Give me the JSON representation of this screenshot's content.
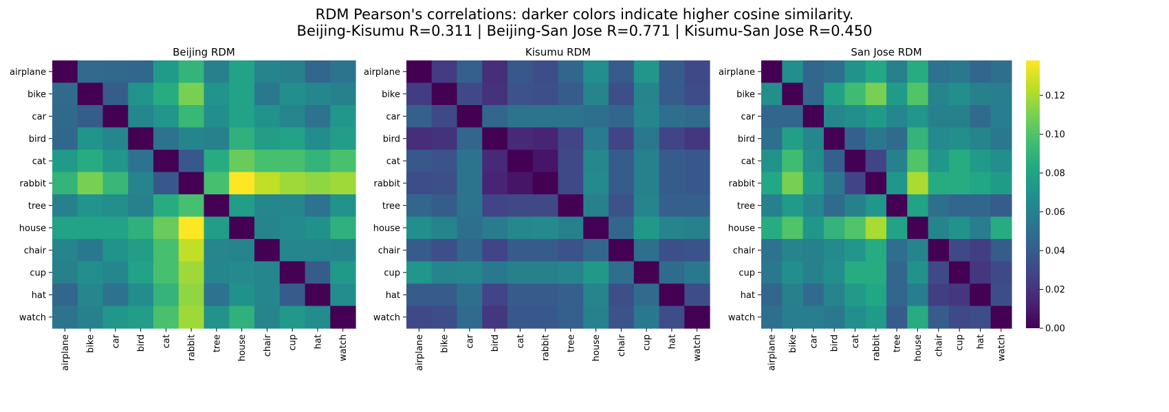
{
  "title_line1": "RDM Pearson's correlations: darker colors indicate higher cosine similarity.",
  "title_line2": "Beijing-Kisumu R=0.311 | Beijing-San Jose R=0.771 | Kisumu-San Jose R=0.450",
  "chart_data": [
    {
      "type": "heatmap",
      "title": "Beijing RDM",
      "labels": [
        "airplane",
        "bike",
        "car",
        "bird",
        "cat",
        "rabbit",
        "tree",
        "house",
        "chair",
        "cup",
        "hat",
        "watch"
      ],
      "values": [
        [
          0.0,
          0.048,
          0.047,
          0.046,
          0.075,
          0.09,
          0.06,
          0.079,
          0.062,
          0.06,
          0.045,
          0.053
        ],
        [
          0.048,
          0.0,
          0.04,
          0.071,
          0.085,
          0.11,
          0.071,
          0.079,
          0.055,
          0.068,
          0.063,
          0.06
        ],
        [
          0.047,
          0.04,
          0.0,
          0.063,
          0.072,
          0.092,
          0.068,
          0.079,
          0.07,
          0.063,
          0.052,
          0.072
        ],
        [
          0.046,
          0.071,
          0.063,
          0.0,
          0.052,
          0.062,
          0.06,
          0.088,
          0.077,
          0.079,
          0.066,
          0.076
        ],
        [
          0.075,
          0.085,
          0.072,
          0.052,
          0.0,
          0.038,
          0.085,
          0.106,
          0.097,
          0.097,
          0.09,
          0.098
        ],
        [
          0.09,
          0.11,
          0.092,
          0.062,
          0.038,
          0.0,
          0.097,
          0.138,
          0.125,
          0.118,
          0.115,
          0.118
        ],
        [
          0.06,
          0.071,
          0.068,
          0.06,
          0.085,
          0.097,
          0.0,
          0.076,
          0.063,
          0.063,
          0.052,
          0.07
        ],
        [
          0.079,
          0.079,
          0.079,
          0.088,
          0.106,
          0.138,
          0.076,
          0.0,
          0.062,
          0.065,
          0.069,
          0.088
        ],
        [
          0.062,
          0.055,
          0.07,
          0.077,
          0.097,
          0.125,
          0.063,
          0.062,
          0.0,
          0.063,
          0.063,
          0.062
        ],
        [
          0.06,
          0.068,
          0.063,
          0.079,
          0.097,
          0.118,
          0.063,
          0.065,
          0.063,
          0.0,
          0.04,
          0.074
        ],
        [
          0.045,
          0.063,
          0.052,
          0.066,
          0.09,
          0.115,
          0.052,
          0.069,
          0.063,
          0.04,
          0.0,
          0.066
        ],
        [
          0.053,
          0.06,
          0.072,
          0.076,
          0.098,
          0.118,
          0.07,
          0.088,
          0.062,
          0.074,
          0.066,
          0.0
        ]
      ]
    },
    {
      "type": "heatmap",
      "title": "Kisumu RDM",
      "labels": [
        "airplane",
        "bike",
        "car",
        "bird",
        "cat",
        "rabbit",
        "tree",
        "house",
        "chair",
        "cup",
        "hat",
        "watch"
      ],
      "values": [
        [
          0.0,
          0.024,
          0.042,
          0.018,
          0.038,
          0.032,
          0.045,
          0.068,
          0.04,
          0.072,
          0.04,
          0.03
        ],
        [
          0.024,
          0.0,
          0.03,
          0.02,
          0.035,
          0.033,
          0.04,
          0.062,
          0.033,
          0.062,
          0.04,
          0.032
        ],
        [
          0.042,
          0.03,
          0.0,
          0.045,
          0.053,
          0.053,
          0.053,
          0.05,
          0.045,
          0.063,
          0.05,
          0.048
        ],
        [
          0.018,
          0.02,
          0.045,
          0.0,
          0.016,
          0.014,
          0.028,
          0.057,
          0.028,
          0.055,
          0.028,
          0.022
        ],
        [
          0.038,
          0.035,
          0.053,
          0.016,
          0.0,
          0.008,
          0.03,
          0.064,
          0.04,
          0.06,
          0.04,
          0.038
        ],
        [
          0.032,
          0.033,
          0.053,
          0.014,
          0.008,
          0.0,
          0.03,
          0.065,
          0.04,
          0.06,
          0.04,
          0.038
        ],
        [
          0.045,
          0.04,
          0.053,
          0.028,
          0.03,
          0.03,
          0.0,
          0.06,
          0.035,
          0.062,
          0.042,
          0.042
        ],
        [
          0.068,
          0.062,
          0.05,
          0.057,
          0.064,
          0.065,
          0.06,
          0.0,
          0.045,
          0.074,
          0.062,
          0.06
        ],
        [
          0.04,
          0.033,
          0.045,
          0.028,
          0.04,
          0.04,
          0.035,
          0.045,
          0.0,
          0.05,
          0.033,
          0.036
        ],
        [
          0.072,
          0.062,
          0.063,
          0.055,
          0.06,
          0.06,
          0.062,
          0.074,
          0.05,
          0.0,
          0.048,
          0.055
        ],
        [
          0.04,
          0.04,
          0.05,
          0.028,
          0.04,
          0.04,
          0.042,
          0.062,
          0.033,
          0.048,
          0.0,
          0.032
        ],
        [
          0.03,
          0.032,
          0.048,
          0.022,
          0.038,
          0.038,
          0.042,
          0.06,
          0.036,
          0.055,
          0.032,
          0.0
        ]
      ]
    },
    {
      "type": "heatmap",
      "title": "San Jose RDM",
      "labels": [
        "airplane",
        "bike",
        "car",
        "bird",
        "cat",
        "rabbit",
        "tree",
        "house",
        "chair",
        "cup",
        "hat",
        "watch"
      ],
      "values": [
        [
          0.0,
          0.068,
          0.045,
          0.05,
          0.07,
          0.083,
          0.06,
          0.085,
          0.052,
          0.055,
          0.045,
          0.05
        ],
        [
          0.068,
          0.0,
          0.045,
          0.078,
          0.095,
          0.11,
          0.075,
          0.1,
          0.062,
          0.068,
          0.06,
          0.058
        ],
        [
          0.045,
          0.045,
          0.0,
          0.063,
          0.068,
          0.075,
          0.063,
          0.072,
          0.06,
          0.06,
          0.048,
          0.058
        ],
        [
          0.05,
          0.078,
          0.063,
          0.0,
          0.042,
          0.055,
          0.048,
          0.09,
          0.065,
          0.068,
          0.062,
          0.055
        ],
        [
          0.07,
          0.095,
          0.068,
          0.042,
          0.0,
          0.028,
          0.06,
          0.1,
          0.072,
          0.085,
          0.075,
          0.068
        ],
        [
          0.083,
          0.11,
          0.075,
          0.055,
          0.028,
          0.0,
          0.072,
          0.12,
          0.085,
          0.085,
          0.082,
          0.075
        ],
        [
          0.06,
          0.075,
          0.063,
          0.048,
          0.06,
          0.072,
          0.0,
          0.08,
          0.05,
          0.045,
          0.045,
          0.04
        ],
        [
          0.085,
          0.1,
          0.072,
          0.09,
          0.1,
          0.12,
          0.08,
          0.0,
          0.062,
          0.07,
          0.058,
          0.085
        ],
        [
          0.052,
          0.062,
          0.06,
          0.065,
          0.072,
          0.085,
          0.05,
          0.062,
          0.0,
          0.03,
          0.025,
          0.04
        ],
        [
          0.055,
          0.068,
          0.06,
          0.068,
          0.085,
          0.085,
          0.045,
          0.07,
          0.03,
          0.0,
          0.022,
          0.03
        ],
        [
          0.045,
          0.06,
          0.048,
          0.062,
          0.075,
          0.082,
          0.045,
          0.058,
          0.025,
          0.022,
          0.0,
          0.032
        ],
        [
          0.05,
          0.058,
          0.058,
          0.055,
          0.068,
          0.075,
          0.04,
          0.085,
          0.04,
          0.03,
          0.032,
          0.0
        ]
      ]
    }
  ],
  "colorbar": {
    "colormap": "viridis",
    "range": [
      0,
      0.138
    ],
    "ticks": [
      0.0,
      0.02,
      0.04,
      0.06,
      0.08,
      0.1,
      0.12
    ],
    "tick_labels": [
      "0.00",
      "0.02",
      "0.04",
      "0.06",
      "0.08",
      "0.10",
      "0.12"
    ]
  }
}
